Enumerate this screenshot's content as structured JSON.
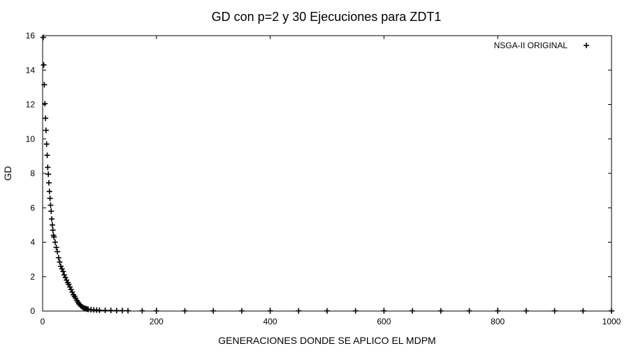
{
  "chart_data": {
    "type": "scatter",
    "title": "GD con p=2 y 30 Ejecuciones para ZDT1",
    "xlabel": "GENERACIONES DONDE SE APLICO EL MDPM",
    "ylabel": "GD",
    "xlim": [
      0,
      1000
    ],
    "ylim": [
      0,
      16
    ],
    "xticks": [
      0,
      200,
      400,
      600,
      800,
      1000
    ],
    "yticks": [
      0,
      2,
      4,
      6,
      8,
      10,
      12,
      14,
      16
    ],
    "grid": false,
    "legend": {
      "position": "top-right"
    },
    "series": [
      {
        "name": "NSGA-II ORIGINAL",
        "marker": "plus",
        "color": "#000000",
        "x": [
          1,
          2,
          3,
          4,
          5,
          6,
          7,
          8,
          9,
          10,
          11,
          12,
          13,
          14,
          15,
          16,
          17,
          18,
          19,
          20,
          22,
          24,
          26,
          28,
          30,
          32,
          34,
          36,
          38,
          40,
          42,
          44,
          46,
          48,
          50,
          52,
          54,
          56,
          58,
          60,
          62,
          64,
          66,
          68,
          70,
          72,
          74,
          76,
          78,
          80,
          85,
          90,
          95,
          100,
          110,
          120,
          130,
          140,
          150,
          175,
          200,
          250,
          300,
          350,
          400,
          450,
          500,
          550,
          600,
          650,
          700,
          750,
          800,
          850,
          900,
          950,
          1000
        ],
        "y": [
          15.9,
          14.3,
          13.15,
          12.05,
          11.2,
          10.5,
          9.7,
          9.05,
          8.35,
          7.95,
          7.45,
          6.95,
          6.55,
          6.15,
          5.8,
          5.35,
          5.0,
          4.7,
          4.4,
          4.3,
          4.0,
          3.7,
          3.45,
          3.1,
          2.85,
          2.6,
          2.45,
          2.3,
          2.1,
          1.95,
          1.8,
          1.65,
          1.55,
          1.4,
          1.25,
          1.1,
          0.95,
          0.85,
          0.75,
          0.62,
          0.52,
          0.42,
          0.35,
          0.28,
          0.23,
          0.19,
          0.16,
          0.14,
          0.12,
          0.1,
          0.08,
          0.07,
          0.06,
          0.05,
          0.04,
          0.035,
          0.03,
          0.025,
          0.02,
          0.015,
          0.01,
          0.01,
          0.01,
          0.01,
          0.01,
          0.01,
          0.01,
          0.01,
          0.01,
          0.01,
          0.01,
          0.01,
          0.01,
          0.01,
          0.01,
          0.01,
          0.01
        ]
      }
    ]
  }
}
